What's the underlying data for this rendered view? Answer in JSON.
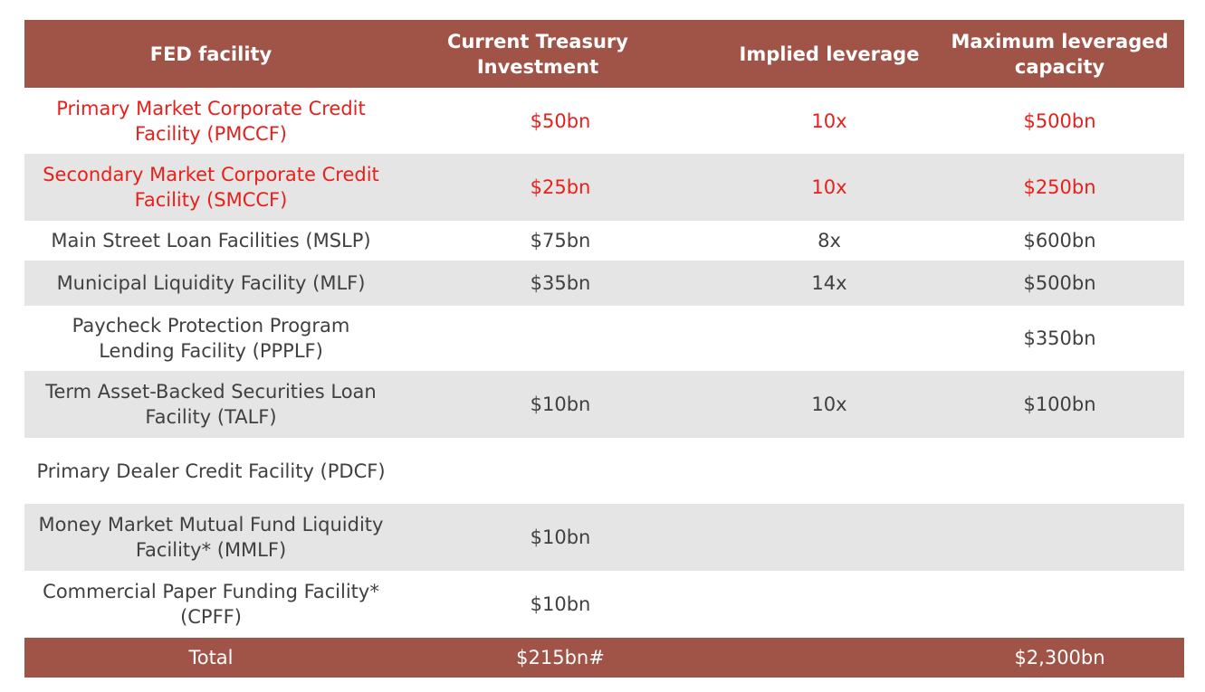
{
  "header": {
    "facility": "FED facility",
    "investment": "Current Treasury Investment",
    "leverage": "Implied leverage",
    "capacity": "Maximum leveraged capacity"
  },
  "rows": [
    {
      "facility": "Primary Market Corporate Credit Facility (PMCCF)",
      "investment": "$50bn",
      "leverage": "10x",
      "capacity": "$500bn",
      "highlight": true
    },
    {
      "facility": "Secondary Market Corporate Credit Facility (SMCCF)",
      "investment": "$25bn",
      "leverage": "10x",
      "capacity": "$250bn",
      "highlight": true
    },
    {
      "facility": "Main Street Loan Facilities (MSLP)",
      "investment": "$75bn",
      "leverage": "8x",
      "capacity": "$600bn",
      "highlight": false
    },
    {
      "facility": "Municipal Liquidity Facility (MLF)",
      "investment": "$35bn",
      "leverage": "14x",
      "capacity": "$500bn",
      "highlight": false
    },
    {
      "facility": "Paycheck Protection Program Lending Facility (PPPLF)",
      "investment": "",
      "leverage": "",
      "capacity": "$350bn",
      "highlight": false
    },
    {
      "facility": "Term Asset-Backed Securities Loan Facility (TALF)",
      "investment": "$10bn",
      "leverage": "10x",
      "capacity": "$100bn",
      "highlight": false
    },
    {
      "facility": "Primary Dealer Credit Facility (PDCF)",
      "investment": "",
      "leverage": "",
      "capacity": "",
      "highlight": false
    },
    {
      "facility": "Money Market Mutual Fund Liquidity Facility* (MMLF)",
      "investment": "$10bn",
      "leverage": "",
      "capacity": "",
      "highlight": false
    },
    {
      "facility": "Commercial Paper Funding Facility* (CPFF)",
      "investment": "$10bn",
      "leverage": "",
      "capacity": "",
      "highlight": false
    }
  ],
  "total": {
    "facility": "Total",
    "investment": "$215bn#",
    "leverage": "",
    "capacity": "$2,300bn"
  },
  "colors": {
    "header_bg": "#a05448",
    "shade_bg": "#e6e5e5",
    "highlight_text": "#e8201b",
    "body_text": "#404040"
  }
}
